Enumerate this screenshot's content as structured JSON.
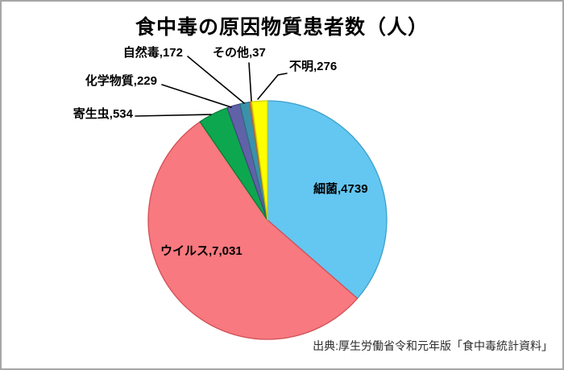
{
  "chart_data": {
    "type": "pie",
    "title": "食中毒の原因物質患者数（人）",
    "source": "出典:厚生労働省令和元年版「食中毒統計資料」",
    "legend_position": "none",
    "label_style": "category,value — large slices labeled inside, small slices labeled outside with black leader lines",
    "slices": [
      {
        "key": "bacteria",
        "label": "細菌",
        "value": 4739,
        "display": "細菌,4739",
        "color": "#63C7F2",
        "border": "#3E9FCB"
      },
      {
        "key": "virus",
        "label": "ウイルス",
        "value": 7031,
        "display": "ウイルス,7,031",
        "color": "#F8797F",
        "border": "#D25157"
      },
      {
        "key": "parasites",
        "label": "寄生虫",
        "value": 534,
        "display": "寄生虫,534",
        "color": "#0DA74F",
        "border": "#0A7C3B"
      },
      {
        "key": "chemicals",
        "label": "化学物質",
        "value": 229,
        "display": "化学物質,229",
        "color": "#6062A8",
        "border": "#45477F"
      },
      {
        "key": "natural-toxins",
        "label": "自然毒",
        "value": 172,
        "display": "自然毒,172",
        "color": "#3C91AA",
        "border": "#2C6F83"
      },
      {
        "key": "others",
        "label": "その他",
        "value": 37,
        "display": "その他,37",
        "color": "#CE8540",
        "border": "#A6682E"
      },
      {
        "key": "unknown",
        "label": "不明",
        "value": 276,
        "display": "不明,276",
        "color": "#FFFF00",
        "border": "#CFCF00"
      }
    ]
  }
}
